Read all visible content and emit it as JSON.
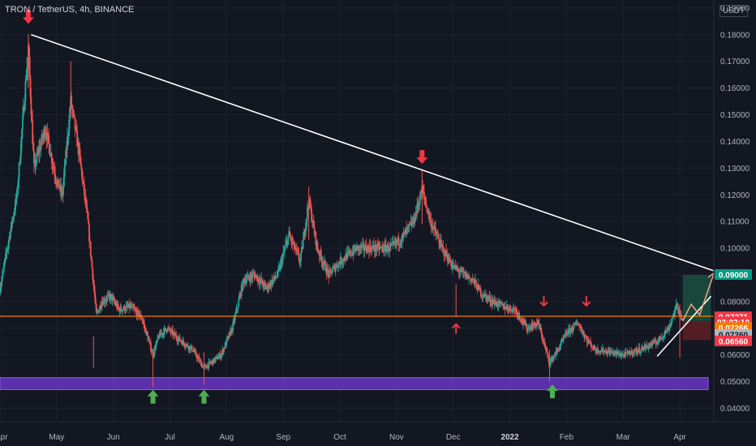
{
  "chart_data": {
    "type": "candlestick",
    "title": "TRON / TetherUS, 4h, BINANCE",
    "currency": "USDT",
    "y_axis": {
      "ticks": [
        "0.19000",
        "0.18000",
        "0.17000",
        "0.16000",
        "0.15000",
        "0.14000",
        "0.13000",
        "0.12000",
        "0.11000",
        "0.10000",
        "0.09000",
        "0.08000",
        "0.07000",
        "0.06000",
        "0.05000",
        "0.04000"
      ],
      "range": [
        0.035,
        0.193
      ]
    },
    "x_axis": {
      "ticks": [
        {
          "label": "Apr",
          "t": 0
        },
        {
          "label": "May",
          "t": 1
        },
        {
          "label": "Jun",
          "t": 2
        },
        {
          "label": "Jul",
          "t": 3
        },
        {
          "label": "Aug",
          "t": 4
        },
        {
          "label": "Sep",
          "t": 5
        },
        {
          "label": "Oct",
          "t": 6
        },
        {
          "label": "Nov",
          "t": 7
        },
        {
          "label": "Dec",
          "t": 8
        },
        {
          "label": "2022",
          "t": 9,
          "bold": true
        },
        {
          "label": "Feb",
          "t": 10
        },
        {
          "label": "Mar",
          "t": 11
        },
        {
          "label": "Apr",
          "t": 12
        }
      ],
      "range": [
        0,
        12.6
      ]
    },
    "price_path": [
      [
        0.0,
        0.085
      ],
      [
        0.3,
        0.12
      ],
      [
        0.5,
        0.175
      ],
      [
        0.6,
        0.13
      ],
      [
        0.8,
        0.145
      ],
      [
        1.0,
        0.125
      ],
      [
        1.1,
        0.12
      ],
      [
        1.25,
        0.155
      ],
      [
        1.4,
        0.135
      ],
      [
        1.55,
        0.11
      ],
      [
        1.7,
        0.075
      ],
      [
        1.8,
        0.08
      ],
      [
        1.95,
        0.082
      ],
      [
        2.1,
        0.077
      ],
      [
        2.3,
        0.078
      ],
      [
        2.5,
        0.074
      ],
      [
        2.7,
        0.06
      ],
      [
        2.8,
        0.067
      ],
      [
        2.95,
        0.07
      ],
      [
        3.15,
        0.066
      ],
      [
        3.4,
        0.062
      ],
      [
        3.6,
        0.055
      ],
      [
        3.9,
        0.06
      ],
      [
        4.1,
        0.07
      ],
      [
        4.3,
        0.088
      ],
      [
        4.5,
        0.09
      ],
      [
        4.7,
        0.085
      ],
      [
        4.9,
        0.09
      ],
      [
        5.1,
        0.105
      ],
      [
        5.3,
        0.095
      ],
      [
        5.45,
        0.118
      ],
      [
        5.6,
        0.1
      ],
      [
        5.8,
        0.09
      ],
      [
        6.0,
        0.095
      ],
      [
        6.3,
        0.1
      ],
      [
        6.6,
        0.1
      ],
      [
        6.9,
        0.1
      ],
      [
        7.1,
        0.104
      ],
      [
        7.3,
        0.11
      ],
      [
        7.45,
        0.122
      ],
      [
        7.6,
        0.11
      ],
      [
        7.8,
        0.1
      ],
      [
        8.0,
        0.093
      ],
      [
        8.2,
        0.09
      ],
      [
        8.35,
        0.088
      ],
      [
        8.5,
        0.083
      ],
      [
        8.7,
        0.08
      ],
      [
        8.9,
        0.078
      ],
      [
        9.1,
        0.077
      ],
      [
        9.3,
        0.07
      ],
      [
        9.5,
        0.072
      ],
      [
        9.7,
        0.057
      ],
      [
        9.85,
        0.062
      ],
      [
        10.0,
        0.068
      ],
      [
        10.2,
        0.072
      ],
      [
        10.35,
        0.066
      ],
      [
        10.5,
        0.062
      ],
      [
        10.8,
        0.061
      ],
      [
        11.0,
        0.06
      ],
      [
        11.3,
        0.062
      ],
      [
        11.6,
        0.065
      ],
      [
        11.8,
        0.07
      ],
      [
        11.95,
        0.0785
      ],
      [
        12.05,
        0.0727
      ]
    ],
    "price_range_overall": {
      "high": 0.18,
      "low": 0.048
    },
    "support_zone": {
      "low": 0.047,
      "high": 0.0515,
      "x_start": 0.0,
      "x_end": 12.5,
      "color": "#6a35c2"
    },
    "horizontal_line": {
      "price": 0.0745,
      "color": "#f57c00"
    },
    "trendlines": [
      {
        "points": [
          [
            0.55,
            0.18
          ],
          [
            12.6,
            0.0915
          ]
        ],
        "color": "#ffffff"
      },
      {
        "points": [
          [
            11.6,
            0.0595
          ],
          [
            12.55,
            0.082
          ]
        ],
        "color": "#ffffff"
      }
    ],
    "projection": {
      "points": [
        [
          12.05,
          0.0727
        ],
        [
          12.2,
          0.079
        ],
        [
          12.35,
          0.075
        ],
        [
          12.6,
          0.0905
        ]
      ],
      "color": "#f5a487"
    },
    "position_box": {
      "x_start": 12.05,
      "x_end": 12.55,
      "entry": 0.07271,
      "target": 0.09,
      "stop": 0.0656,
      "profit_color": "#1b4d3e",
      "loss_color": "#5a1f24"
    },
    "arrows": [
      {
        "dir": "down",
        "color": "#f23645",
        "t": 0.5,
        "price": 0.1865
      },
      {
        "dir": "down",
        "color": "#f23645",
        "t": 7.45,
        "price": 0.134
      },
      {
        "dir": "up",
        "color": "#f23645",
        "t": 8.05,
        "price": 0.07
      },
      {
        "dir": "down",
        "color": "#f23645",
        "t": 9.6,
        "price": 0.08
      },
      {
        "dir": "down",
        "color": "#f23645",
        "t": 10.35,
        "price": 0.08
      },
      {
        "dir": "up",
        "color": "#4caf50",
        "t": 2.7,
        "price": 0.0445
      },
      {
        "dir": "up",
        "color": "#4caf50",
        "t": 3.6,
        "price": 0.0445
      },
      {
        "dir": "up",
        "color": "#4caf50",
        "t": 9.75,
        "price": 0.0465
      }
    ],
    "price_labels": [
      {
        "text": "0.09000",
        "price": 0.09,
        "bg": "#089981",
        "fg": "#ffffff"
      },
      {
        "text": "0.07271",
        "price": 0.07415,
        "bg": "#f23645",
        "fg": "#ffffff"
      },
      {
        "text": "03:02:10",
        "price": 0.0722,
        "bg": "#f23645",
        "fg": "#ffffff"
      },
      {
        "text": "0.07266",
        "price": 0.0701,
        "bg": "#f57c00",
        "fg": "#ffffff"
      },
      {
        "text": "0.07260",
        "price": 0.0675,
        "bg": "#b2b5be",
        "fg": "#131722"
      },
      {
        "text": "0.06560",
        "price": 0.0651,
        "bg": "#f23645",
        "fg": "#ffffff"
      }
    ],
    "colors": {
      "background": "#131722",
      "grid": "#1e222d",
      "up_candle": "#26a69a",
      "down_candle": "#ef5350",
      "axis_text": "#b2b5be",
      "title_text": "#d1d4dc"
    },
    "grid": true,
    "legend": "none"
  }
}
